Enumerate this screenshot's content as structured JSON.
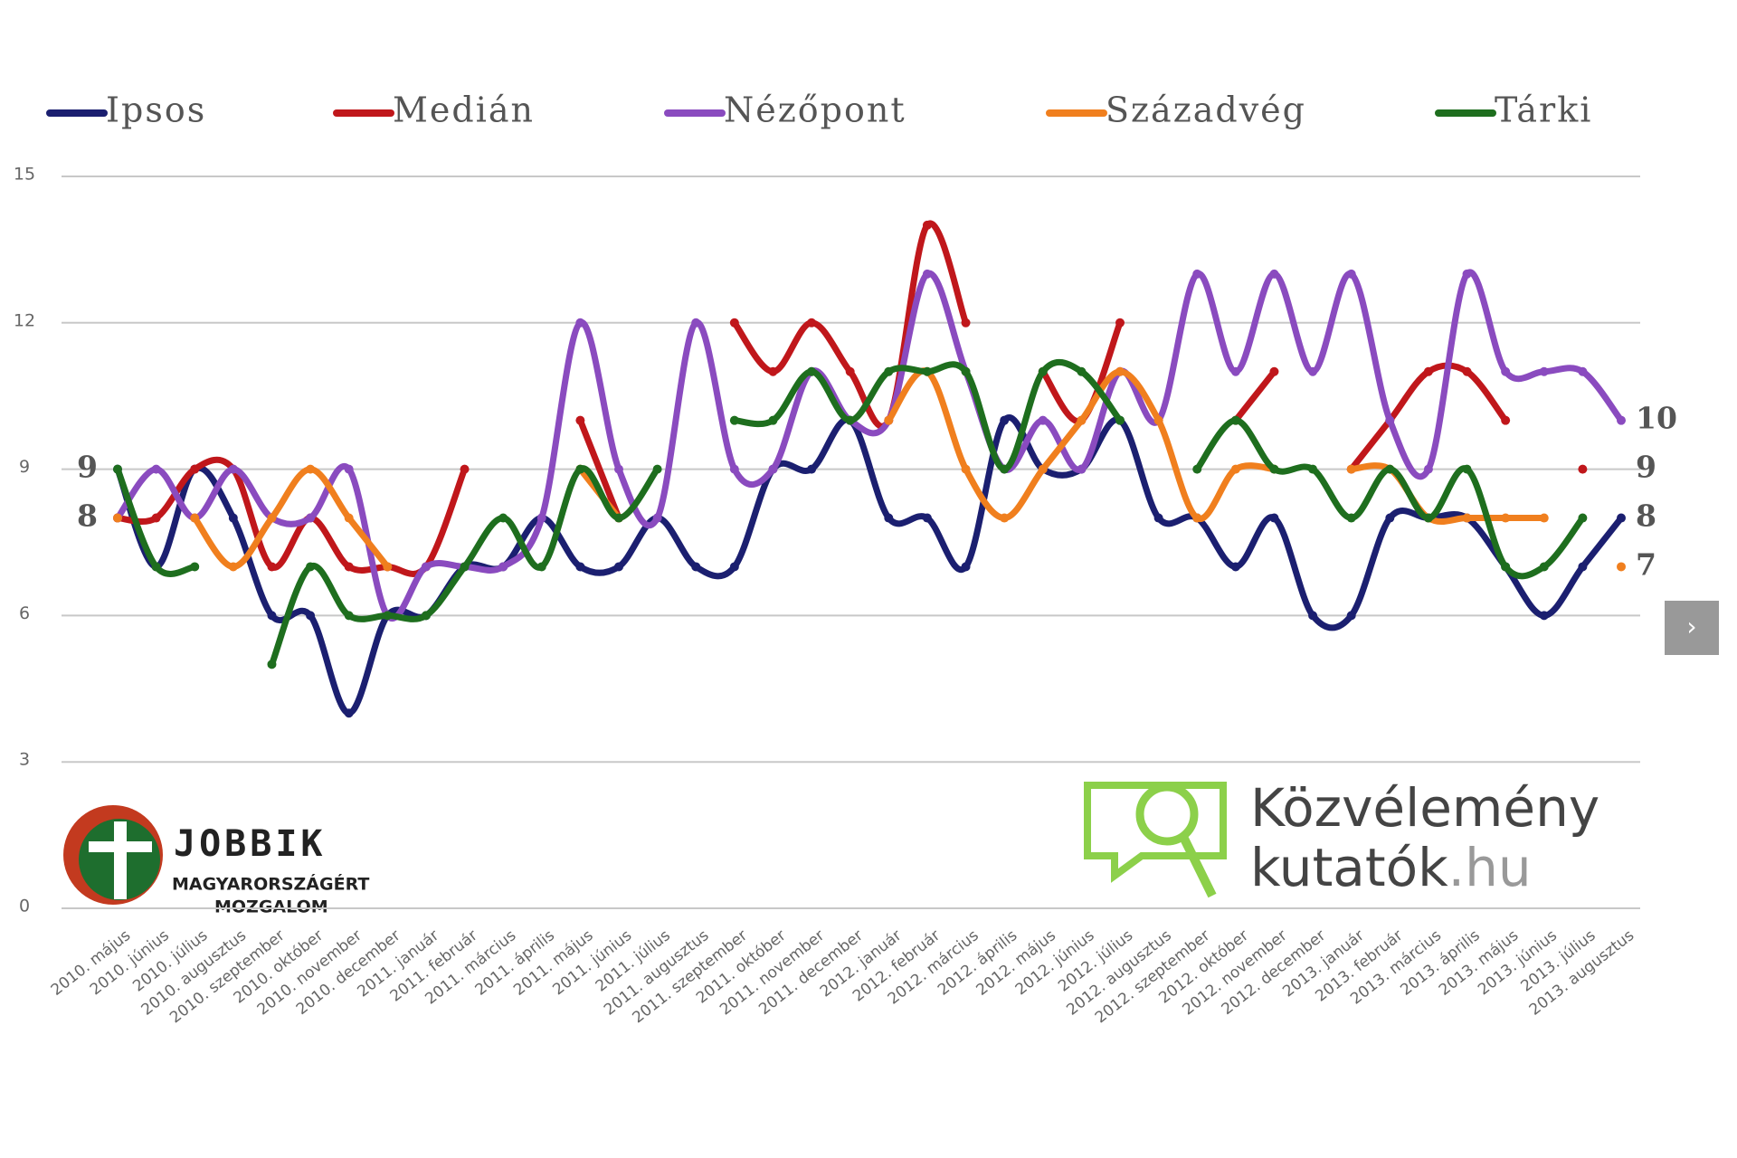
{
  "chart_data": {
    "type": "line",
    "categories": [
      "2010. május",
      "2010. június",
      "2010. július",
      "2010. augusztus",
      "2010. szeptember",
      "2010. október",
      "2010. november",
      "2010. december",
      "2011. január",
      "2011. február",
      "2011. március",
      "2011. április",
      "2011. május",
      "2011. június",
      "2011. július",
      "2011. augusztus",
      "2011. szeptember",
      "2011. október",
      "2011. november",
      "2011. december",
      "2012. január",
      "2012. február",
      "2012. március",
      "2012. április",
      "2012. május",
      "2012. június",
      "2012. július",
      "2012. augusztus",
      "2012. szeptember",
      "2012. október",
      "2012. november",
      "2012. december",
      "2013. január",
      "2013. február",
      "2013. március",
      "2013. április",
      "2013. május",
      "2013. június",
      "2013. július",
      "2013. augusztus"
    ],
    "series": [
      {
        "name": "Ipsos",
        "color": "#1b1f70",
        "values": [
          9,
          7,
          9,
          8,
          6,
          6,
          4,
          6,
          6,
          7,
          7,
          8,
          7,
          7,
          8,
          7,
          7,
          9,
          9,
          10,
          8,
          8,
          7,
          10,
          9,
          9,
          10,
          8,
          8,
          7,
          8,
          6,
          6,
          8,
          8,
          8,
          7,
          6,
          7,
          8
        ]
      },
      {
        "name": "Medián",
        "color": "#c0171b",
        "values": [
          8,
          8,
          9,
          9,
          7,
          8,
          7,
          7,
          7,
          9,
          null,
          null,
          10,
          8,
          null,
          null,
          12,
          11,
          12,
          11,
          10,
          14,
          12,
          null,
          11,
          10,
          12,
          null,
          null,
          10,
          11,
          null,
          9,
          10,
          11,
          11,
          10,
          null,
          9,
          null
        ]
      },
      {
        "name": "Nézőpont",
        "color": "#8a4bbf",
        "values": [
          8,
          9,
          8,
          9,
          8,
          8,
          9,
          6,
          7,
          7,
          7,
          8,
          12,
          9,
          8,
          12,
          9,
          9,
          11,
          10,
          10,
          13,
          11,
          9,
          10,
          9,
          11,
          10,
          13,
          11,
          13,
          11,
          13,
          10,
          9,
          13,
          11,
          11,
          11,
          10
        ]
      },
      {
        "name": "Századvég",
        "color": "#f07f1e",
        "values": [
          8,
          null,
          8,
          7,
          8,
          9,
          8,
          7,
          null,
          null,
          null,
          null,
          9,
          8,
          null,
          null,
          null,
          null,
          null,
          null,
          10,
          11,
          9,
          8,
          9,
          10,
          11,
          10,
          8,
          9,
          9,
          null,
          9,
          9,
          8,
          8,
          8,
          8,
          null,
          7
        ]
      },
      {
        "name": "Tárki",
        "color": "#1e6e1e",
        "values": [
          9,
          7,
          7,
          null,
          5,
          7,
          6,
          6,
          6,
          7,
          8,
          7,
          9,
          8,
          9,
          null,
          10,
          10,
          11,
          10,
          11,
          11,
          11,
          9,
          11,
          11,
          10,
          null,
          9,
          10,
          9,
          9,
          8,
          9,
          8,
          9,
          7,
          7,
          8,
          null
        ]
      }
    ],
    "ylim": [
      0,
      15
    ],
    "yticks": [
      0,
      3,
      6,
      9,
      12,
      15
    ],
    "grid": true,
    "legend": "top"
  },
  "logos": {
    "left": [
      "JOBBIK",
      "MAGYARORSZÁGÉRT",
      "MOZGALOM"
    ],
    "right": [
      "Közvélemény",
      "kutatók",
      ".hu"
    ]
  },
  "ui": {
    "next_button": "›"
  }
}
